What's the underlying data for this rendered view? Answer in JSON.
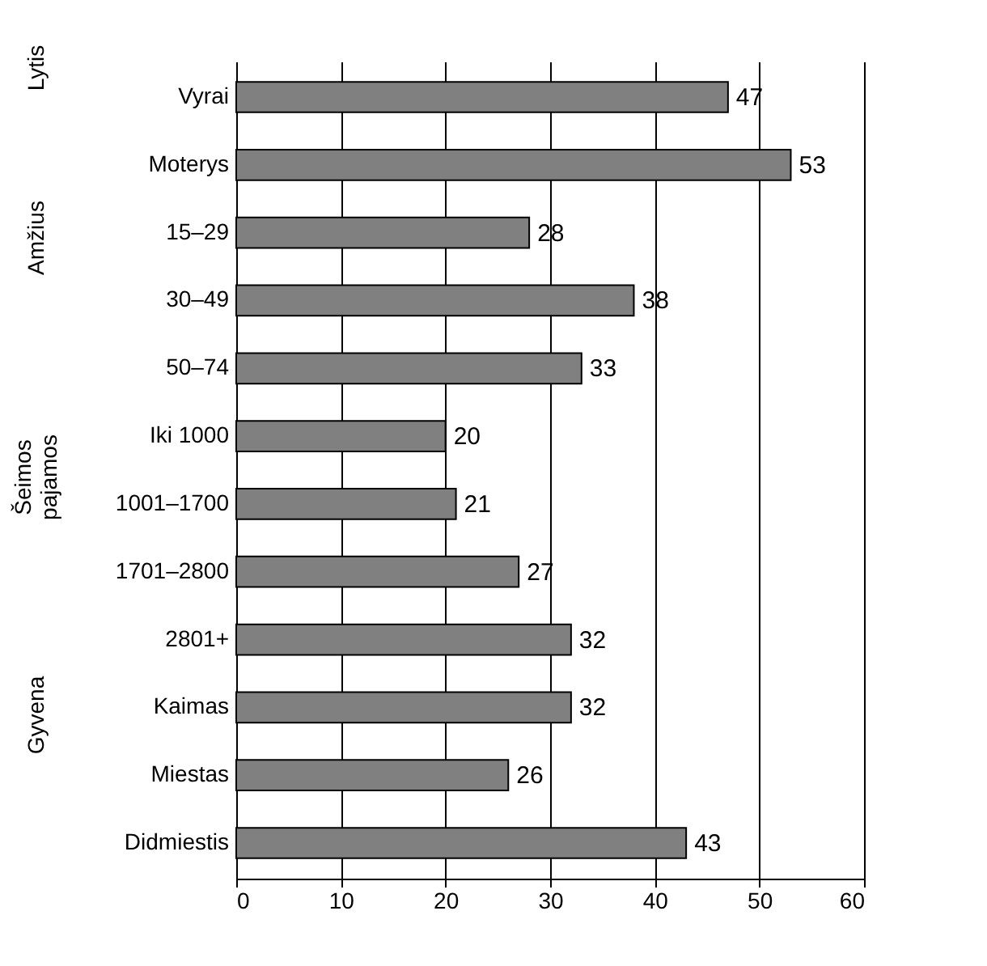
{
  "chart_data": {
    "type": "bar",
    "orientation": "horizontal",
    "categories": [
      "Vyrai",
      "Moterys",
      "15–29",
      "30–49",
      "50–74",
      "Iki 1000",
      "1001–1700",
      "1701–2800",
      "2801+",
      "Kaimas",
      "Miestas",
      "Didmiestis"
    ],
    "values": [
      47,
      53,
      28,
      38,
      33,
      20,
      21,
      27,
      32,
      32,
      26,
      43
    ],
    "color": "#808080",
    "xlim": [
      0,
      60
    ],
    "xticks": [
      0,
      10,
      20,
      30,
      40,
      50,
      60
    ],
    "grid": "x",
    "data_labels": true,
    "annotations": [
      "Lytis",
      "Amžius",
      "Šeimos pajamos",
      "Gyvena"
    ]
  }
}
